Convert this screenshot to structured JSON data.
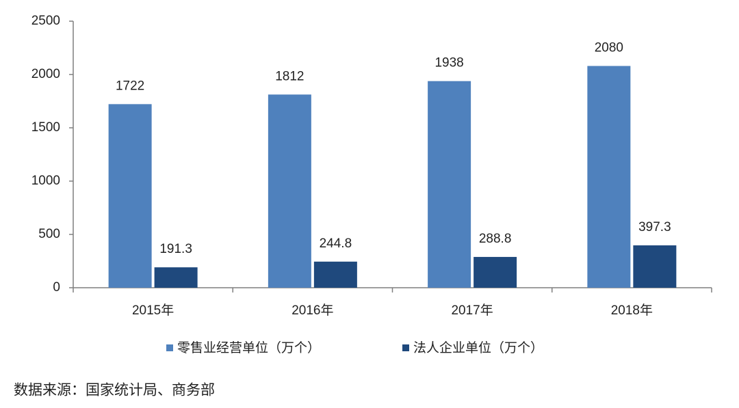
{
  "chart_data": {
    "type": "bar",
    "categories": [
      "2015年",
      "2016年",
      "2017年",
      "2018年"
    ],
    "series": [
      {
        "name": "零售业经营单位（万个）",
        "color": "#4f81bd",
        "values": [
          1722,
          1812,
          1938,
          2080
        ]
      },
      {
        "name": "法人企业单位（万个）",
        "color": "#1f497d",
        "values": [
          191.3,
          244.8,
          288.8,
          397.3
        ]
      }
    ],
    "ylim": [
      0,
      2500
    ],
    "yticks": [
      0,
      500,
      1000,
      1500,
      2000,
      2500
    ],
    "grid": false,
    "legend": "bottom",
    "source": "数据来源：国家统计局、商务部"
  }
}
